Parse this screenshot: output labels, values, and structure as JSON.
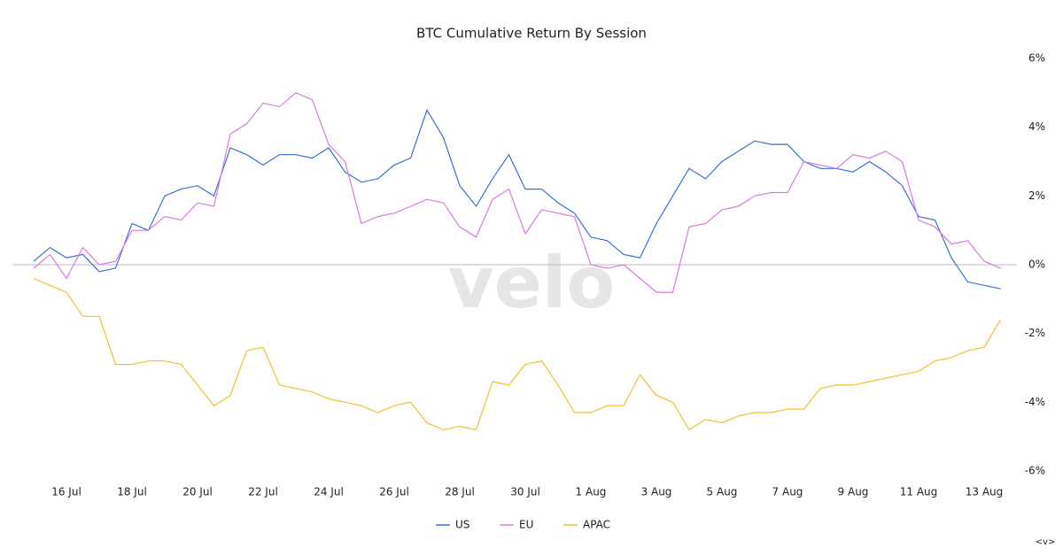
{
  "chart_data": {
    "type": "line",
    "title": "BTC Cumulative Return By Session",
    "watermark": "velo",
    "corner_mark": "<v>",
    "categories": [
      null,
      null,
      "16 Jul",
      null,
      null,
      null,
      "18 Jul",
      null,
      null,
      null,
      "20 Jul",
      null,
      null,
      null,
      "22 Jul",
      null,
      null,
      null,
      "24 Jul",
      null,
      null,
      null,
      "26 Jul",
      null,
      null,
      null,
      "28 Jul",
      null,
      null,
      null,
      "30 Jul",
      null,
      null,
      null,
      "1 Aug",
      null,
      null,
      null,
      "3 Aug",
      null,
      null,
      null,
      "5 Aug",
      null,
      null,
      null,
      "7 Aug",
      null,
      null,
      null,
      "9 Aug",
      null,
      null,
      null,
      "11 Aug",
      null,
      null,
      null,
      "13 Aug",
      null
    ],
    "series": [
      {
        "name": "US",
        "color": "#3a6fd8",
        "values": [
          0.1,
          0.5,
          0.2,
          0.3,
          -0.2,
          -0.1,
          1.2,
          1.0,
          2.0,
          2.2,
          2.3,
          2.0,
          3.4,
          3.2,
          2.9,
          3.2,
          3.2,
          3.1,
          3.4,
          2.7,
          2.4,
          2.5,
          2.9,
          3.1,
          4.5,
          3.7,
          2.3,
          1.7,
          2.5,
          3.2,
          2.2,
          2.2,
          1.8,
          1.5,
          0.8,
          0.7,
          0.3,
          0.2,
          1.2,
          2.0,
          2.8,
          2.5,
          3.0,
          3.3,
          3.6,
          3.5,
          3.5,
          3.0,
          2.8,
          2.8,
          2.7,
          3.0,
          2.7,
          2.3,
          1.4,
          1.3,
          0.2,
          -0.5,
          -0.6,
          -0.7
        ]
      },
      {
        "name": "EU",
        "color": "#d77be0",
        "values": [
          -0.1,
          0.3,
          -0.4,
          0.5,
          0,
          0.1,
          1.0,
          1.0,
          1.4,
          1.3,
          1.8,
          1.7,
          3.8,
          4.1,
          4.7,
          4.6,
          5.0,
          4.8,
          3.5,
          3.0,
          1.2,
          1.4,
          1.5,
          1.7,
          1.9,
          1.8,
          1.1,
          0.8,
          1.9,
          2.2,
          0.9,
          1.6,
          1.5,
          1.4,
          0,
          -0.1,
          0,
          -0.4,
          -0.8,
          -0.8,
          1.1,
          1.2,
          1.6,
          1.7,
          2.0,
          2.1,
          2.1,
          3.0,
          2.9,
          2.8,
          3.2,
          3.1,
          3.3,
          3.0,
          1.3,
          1.1,
          0.6,
          0.7,
          0.1,
          -0.1
        ]
      },
      {
        "name": "APAC",
        "color": "#f0c030",
        "values": [
          -0.4,
          -0.6,
          -0.8,
          -1.5,
          -1.5,
          -2.9,
          -2.9,
          -2.8,
          -2.8,
          -2.9,
          -3.5,
          -4.1,
          -3.8,
          -2.5,
          -2.4,
          -3.5,
          -3.6,
          -3.7,
          -3.9,
          -4.0,
          -4.1,
          -4.3,
          -4.1,
          -4.0,
          -4.6,
          -4.8,
          -4.7,
          -4.8,
          -3.4,
          -3.5,
          -2.9,
          -2.8,
          -3.5,
          -4.3,
          -4.3,
          -4.1,
          -4.1,
          -3.2,
          -3.8,
          -4.0,
          -4.8,
          -4.5,
          -4.6,
          -4.4,
          -4.3,
          -4.3,
          -4.2,
          -4.2,
          -3.6,
          -3.5,
          -3.5,
          -3.4,
          -3.3,
          -3.2,
          -3.1,
          -2.8,
          -2.7,
          -2.5,
          -2.4,
          -1.6
        ]
      }
    ],
    "ylim": [
      -6,
      6
    ],
    "yticks": [
      {
        "value": -6,
        "label": "-6%"
      },
      {
        "value": -4,
        "label": "-4%"
      },
      {
        "value": -2,
        "label": "-2%"
      },
      {
        "value": 0,
        "label": "0%"
      },
      {
        "value": 2,
        "label": "2%"
      },
      {
        "value": 4,
        "label": "4%"
      },
      {
        "value": 6,
        "label": "6%"
      }
    ],
    "grid": false,
    "zero_line": true,
    "legend": "bottom"
  }
}
